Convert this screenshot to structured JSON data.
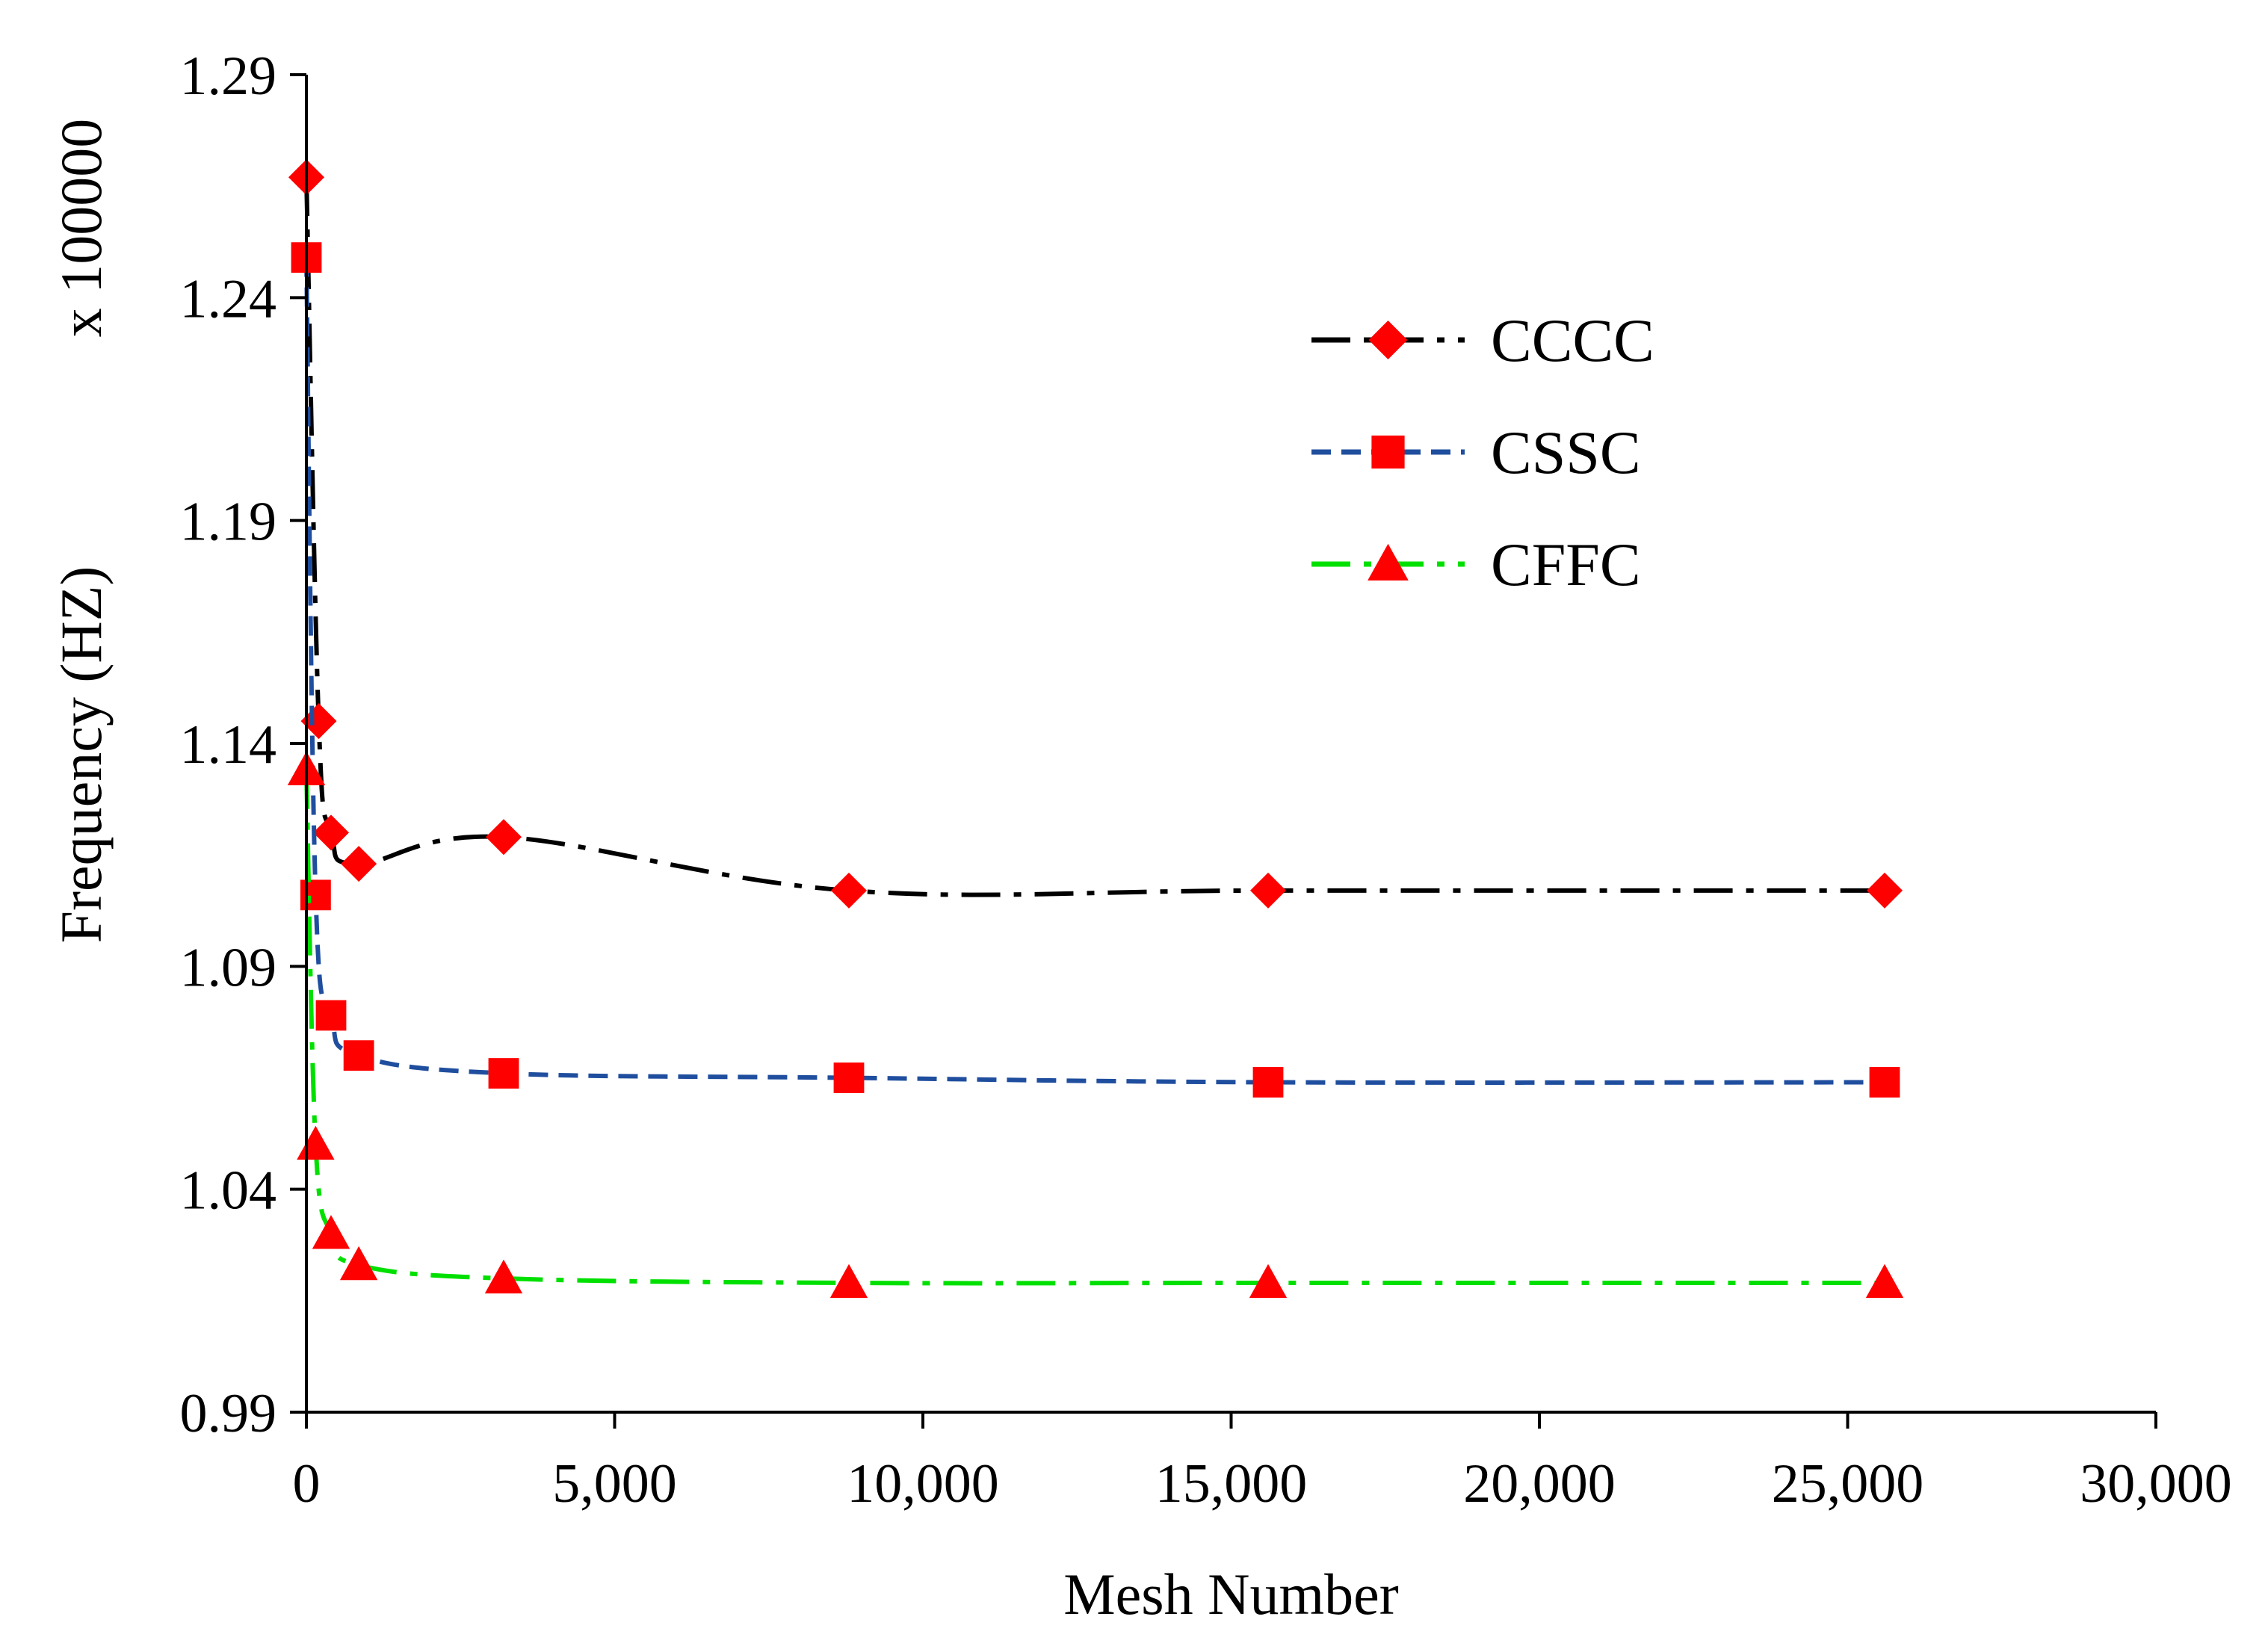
{
  "chart_data": {
    "type": "line",
    "title": "",
    "xlabel": "Mesh Number",
    "ylabel": "Frequency (HZ)",
    "y_multiplier_label": "x 100000",
    "xlim": [
      0,
      30000
    ],
    "ylim": [
      0.99,
      1.29
    ],
    "x_ticks": [
      0,
      5000,
      10000,
      15000,
      20000,
      25000,
      30000
    ],
    "x_tick_labels": [
      "0",
      "5,000",
      "10,000",
      "15,000",
      "20,000",
      "25,000",
      "30,000"
    ],
    "y_ticks": [
      0.99,
      1.04,
      1.09,
      1.14,
      1.19,
      1.24,
      1.29
    ],
    "y_tick_labels": [
      "0.99",
      "1.04",
      "1.09",
      "1.14",
      "1.19",
      "1.24",
      "1.29"
    ],
    "grid": false,
    "legend_position": "top-right",
    "series": [
      {
        "name": "CCCC",
        "line_color": "#000000",
        "marker": "diamond",
        "marker_color": "#ff0000",
        "line_style": "dash-dot",
        "x": [
          0,
          200,
          400,
          850,
          3200,
          8800,
          15600,
          25600
        ],
        "values": [
          1.267,
          1.145,
          1.12,
          1.113,
          1.119,
          1.107,
          1.107,
          1.107
        ]
      },
      {
        "name": "CSSC",
        "line_color": "#1f4e9e",
        "marker": "square",
        "marker_color": "#ff0000",
        "line_style": "dashed",
        "x": [
          0,
          150,
          400,
          850,
          3200,
          8800,
          15600,
          25600
        ],
        "values": [
          1.249,
          1.106,
          1.079,
          1.07,
          1.066,
          1.065,
          1.064,
          1.064
        ]
      },
      {
        "name": "CFFC",
        "line_color": "#00e000",
        "marker": "triangle",
        "marker_color": "#ff0000",
        "line_style": "dash-dot",
        "x": [
          0,
          150,
          400,
          850,
          3200,
          8800,
          15600,
          25600
        ],
        "values": [
          1.134,
          1.05,
          1.03,
          1.023,
          1.02,
          1.019,
          1.019,
          1.019
        ]
      }
    ]
  }
}
